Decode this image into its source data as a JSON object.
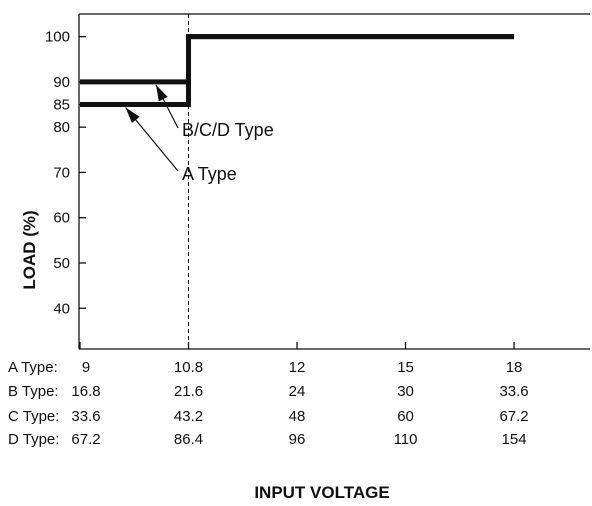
{
  "chart_data": {
    "type": "line",
    "xlabel": "INPUT VOLTAGE",
    "ylabel": "LOAD (%)",
    "y_ticks": [
      100,
      90,
      85,
      80,
      70,
      60,
      50,
      40
    ],
    "ylim": [
      31,
      105
    ],
    "x_positions": [
      0,
      1,
      2,
      3,
      4
    ],
    "xlim": [
      0,
      4.7
    ],
    "x_tick_rows": [
      {
        "label": "A Type:",
        "values": [
          "9",
          "10.8",
          "12",
          "15",
          "18"
        ]
      },
      {
        "label": "B Type:",
        "values": [
          "16.8",
          "21.6",
          "24",
          "30",
          "33.6"
        ]
      },
      {
        "label": "C Type:",
        "values": [
          "33.6",
          "43.2",
          "48",
          "60",
          "67.2"
        ]
      },
      {
        "label": "D Type:",
        "values": [
          "67.2",
          "86.4",
          "96",
          "110",
          "154"
        ]
      }
    ],
    "series": [
      {
        "name": "A Type",
        "points": [
          [
            0,
            85
          ],
          [
            1,
            85
          ],
          [
            1,
            100
          ],
          [
            4,
            100
          ]
        ]
      },
      {
        "name": "B/C/D Type",
        "points": [
          [
            0,
            90
          ],
          [
            1,
            90
          ],
          [
            1,
            100
          ],
          [
            4,
            100
          ]
        ]
      }
    ],
    "reference_line_x": 1,
    "annotations": [
      {
        "text": "B/C/D Type",
        "series": "B/C/D Type",
        "point": [
          0.7,
          90
        ]
      },
      {
        "text": "A Type",
        "series": "A Type",
        "point": [
          0.42,
          85
        ]
      }
    ],
    "grid": false
  }
}
